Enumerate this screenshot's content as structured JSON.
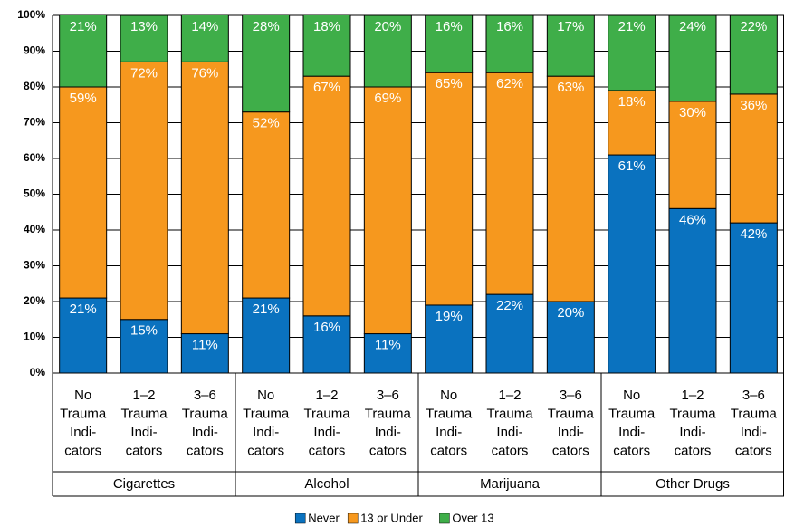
{
  "chart_data": {
    "type": "stacked_bar",
    "categories": [
      [
        "No",
        "Trauma",
        "Indi-",
        "cators"
      ],
      [
        "1–2",
        "Trauma",
        "Indi-",
        "cators"
      ],
      [
        "3–6",
        "Trauma",
        "Indi-",
        "cators"
      ],
      [
        "No",
        "Trauma",
        "Indi-",
        "cators"
      ],
      [
        "1–2",
        "Trauma",
        "Indi-",
        "cators"
      ],
      [
        "3–6",
        "Trauma",
        "Indi-",
        "cators"
      ],
      [
        "No",
        "Trauma",
        "Indi-",
        "cators"
      ],
      [
        "1–2",
        "Trauma",
        "Indi-",
        "cators"
      ],
      [
        "3–6",
        "Trauma",
        "Indi-",
        "cators"
      ],
      [
        "No",
        "Trauma",
        "Indi-",
        "cators"
      ],
      [
        "1–2",
        "Trauma",
        "Indi-",
        "cators"
      ],
      [
        "3–6",
        "Trauma",
        "Indi-",
        "cators"
      ]
    ],
    "groups": [
      "Cigarettes",
      "Alcohol",
      "Marijuana",
      "Other Drugs"
    ],
    "series": [
      {
        "name": "Never",
        "color": "#0a72bf",
        "values": [
          21,
          15,
          11,
          21,
          16,
          11,
          19,
          22,
          20,
          61,
          46,
          42
        ],
        "value_labels": [
          "21%",
          "15%",
          "11%",
          "21%",
          "16%",
          "11%",
          "19%",
          "22%",
          "20%",
          "61%",
          "46%",
          "42%"
        ]
      },
      {
        "name": "13 or Under",
        "color": "#f6981e",
        "values": [
          59,
          72,
          76,
          52,
          67,
          69,
          65,
          62,
          63,
          18,
          30,
          36
        ],
        "value_labels": [
          "59%",
          "72%",
          "76%",
          "52%",
          "67%",
          "69%",
          "65%",
          "62%",
          "63%",
          "18%",
          "30%",
          "36%"
        ]
      },
      {
        "name": "Over 13",
        "color": "#3fae49",
        "values": [
          21,
          13,
          14,
          28,
          18,
          20,
          16,
          16,
          17,
          21,
          24,
          22
        ],
        "value_labels": [
          "21%",
          "13%",
          "14%",
          "28%",
          "18%",
          "20%",
          "16%",
          "16%",
          "17%",
          "21%",
          "24%",
          "22%"
        ]
      }
    ],
    "ylim": [
      0,
      100
    ],
    "yticks": [
      {
        "value": 0,
        "label": "0%"
      },
      {
        "value": 10,
        "label": "10%"
      },
      {
        "value": 20,
        "label": "20%"
      },
      {
        "value": 30,
        "label": "30%"
      },
      {
        "value": 40,
        "label": "40%"
      },
      {
        "value": 50,
        "label": "50%"
      },
      {
        "value": 60,
        "label": "60%"
      },
      {
        "value": 70,
        "label": "70%"
      },
      {
        "value": 80,
        "label": "80%"
      },
      {
        "value": 90,
        "label": "90%"
      },
      {
        "value": 100,
        "label": "100%"
      }
    ],
    "grid": true,
    "legend": "bottom"
  }
}
